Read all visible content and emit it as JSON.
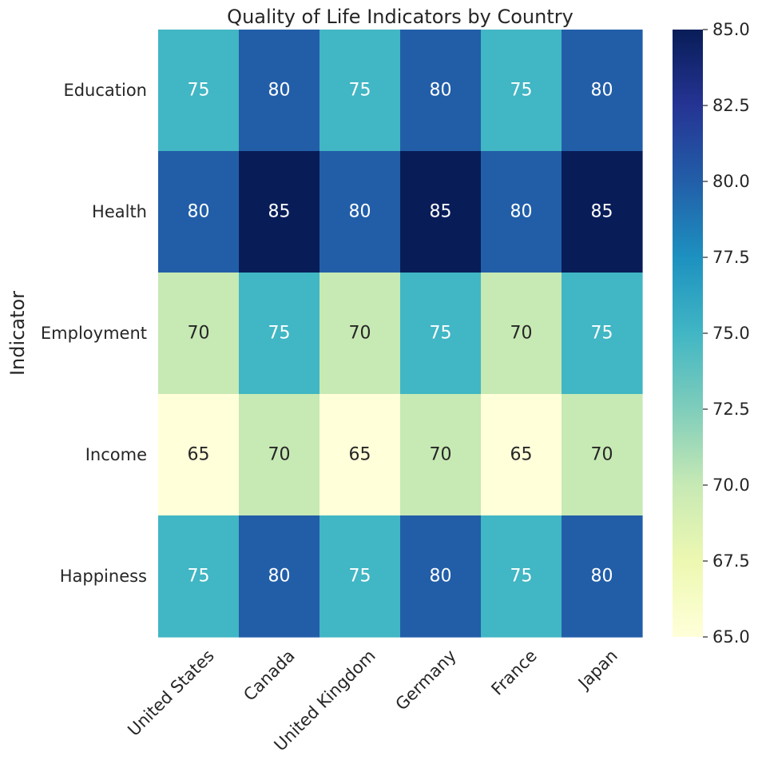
{
  "chart_data": {
    "type": "heatmap",
    "title": "Quality of Life Indicators by Country",
    "ylabel": "Indicator",
    "xlabel": "",
    "columns": [
      "United States",
      "Canada",
      "United Kingdom",
      "Germany",
      "France",
      "Japan"
    ],
    "rows": [
      "Education",
      "Health",
      "Employment",
      "Income",
      "Happiness"
    ],
    "values": [
      [
        75,
        80,
        75,
        80,
        75,
        80
      ],
      [
        80,
        85,
        80,
        85,
        80,
        85
      ],
      [
        70,
        75,
        70,
        75,
        70,
        75
      ],
      [
        65,
        70,
        65,
        70,
        65,
        70
      ],
      [
        75,
        80,
        75,
        80,
        75,
        80
      ]
    ],
    "annotated": true,
    "colormap": "YlGnBu",
    "value_range": [
      65,
      85
    ],
    "colorbar": {
      "ticks": [
        65.0,
        67.5,
        70.0,
        72.5,
        75.0,
        77.5,
        80.0,
        82.5,
        85.0
      ],
      "tick_labels": [
        "65.0",
        "67.5",
        "70.0",
        "72.5",
        "75.0",
        "77.5",
        "80.0",
        "82.5",
        "85.0"
      ]
    },
    "colors": {
      "low": "#ffffd9",
      "high": "#081d58",
      "text_light": "#ffffff",
      "text_dark": "#262626"
    }
  }
}
